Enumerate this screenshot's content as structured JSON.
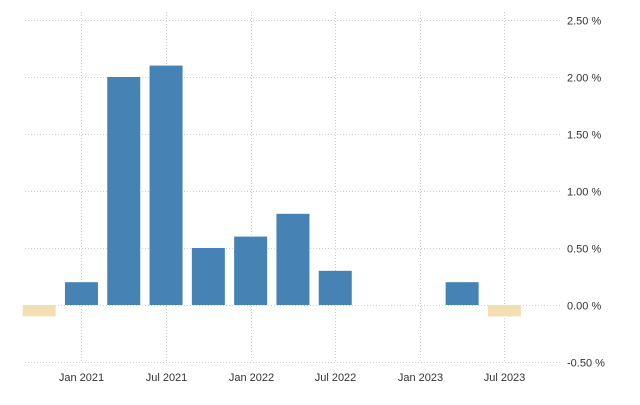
{
  "chart_data": {
    "type": "bar",
    "categories": [
      "Q4 2020",
      "Q1 2021",
      "Q2 2021",
      "Q3 2021",
      "Q4 2021",
      "Q1 2022",
      "Q2 2022",
      "Q3 2022",
      "Q4 2022",
      "Q1 2023",
      "Q2 2023",
      "Q3 2023"
    ],
    "values": [
      -0.1,
      0.2,
      2.0,
      2.1,
      0.5,
      0.6,
      0.8,
      0.3,
      0.0,
      0.0,
      0.2,
      -0.1
    ],
    "x_tick_labels": [
      "Jan 2021",
      "Jul 2021",
      "Jan 2022",
      "Jul 2022",
      "Jan 2023",
      "Jul 2023"
    ],
    "y_ticks": [
      -0.5,
      0.0,
      0.5,
      1.0,
      1.5,
      2.0,
      2.5
    ],
    "y_tick_labels": [
      "-0.50 %",
      "0.00 %",
      "0.50 %",
      "1.00 %",
      "1.50 %",
      "2.00 %",
      "2.50 %"
    ],
    "ylim": [
      -0.5,
      2.5
    ],
    "y_axis_side": "right",
    "grid": "dotted",
    "title": "",
    "xlabel": "",
    "ylabel": "",
    "colors": {
      "positive": "#4682b4",
      "negative": "#f5deb3",
      "grid": "#cccccc",
      "text": "#333333"
    }
  }
}
